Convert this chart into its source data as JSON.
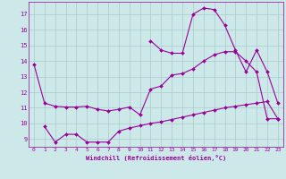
{
  "x": [
    0,
    1,
    2,
    3,
    4,
    5,
    6,
    7,
    8,
    9,
    10,
    11,
    12,
    13,
    14,
    15,
    16,
    17,
    18,
    19,
    20,
    21,
    22,
    23
  ],
  "series1": [
    13.8,
    11.3,
    11.1,
    11.05,
    11.05,
    11.1,
    10.9,
    10.8,
    10.9,
    11.05,
    10.55,
    12.2,
    12.4,
    13.1,
    13.2,
    13.5,
    14.0,
    14.4,
    14.6,
    14.6,
    14.0,
    13.3,
    10.3,
    10.3
  ],
  "series2": [
    null,
    null,
    null,
    null,
    null,
    null,
    null,
    null,
    null,
    null,
    null,
    15.3,
    14.7,
    14.5,
    14.5,
    17.0,
    17.4,
    17.3,
    16.3,
    14.7,
    13.3,
    14.7,
    13.3,
    11.3
  ],
  "series3": [
    null,
    9.8,
    8.8,
    9.3,
    9.3,
    8.8,
    8.8,
    8.8,
    9.5,
    9.7,
    9.85,
    10.0,
    10.1,
    10.25,
    10.4,
    10.55,
    10.7,
    10.85,
    11.0,
    11.1,
    11.2,
    11.3,
    11.4,
    10.3
  ],
  "color": "#990099",
  "bg_color": "#cce8e8",
  "grid_color": "#aacccc",
  "xlabel": "Windchill (Refroidissement éolien,°C)",
  "xlim": [
    -0.5,
    23.5
  ],
  "ylim": [
    8.5,
    17.8
  ],
  "yticks": [
    9,
    10,
    11,
    12,
    13,
    14,
    15,
    16,
    17
  ],
  "xticks": [
    0,
    1,
    2,
    3,
    4,
    5,
    6,
    7,
    8,
    9,
    10,
    11,
    12,
    13,
    14,
    15,
    16,
    17,
    18,
    19,
    20,
    21,
    22,
    23
  ]
}
